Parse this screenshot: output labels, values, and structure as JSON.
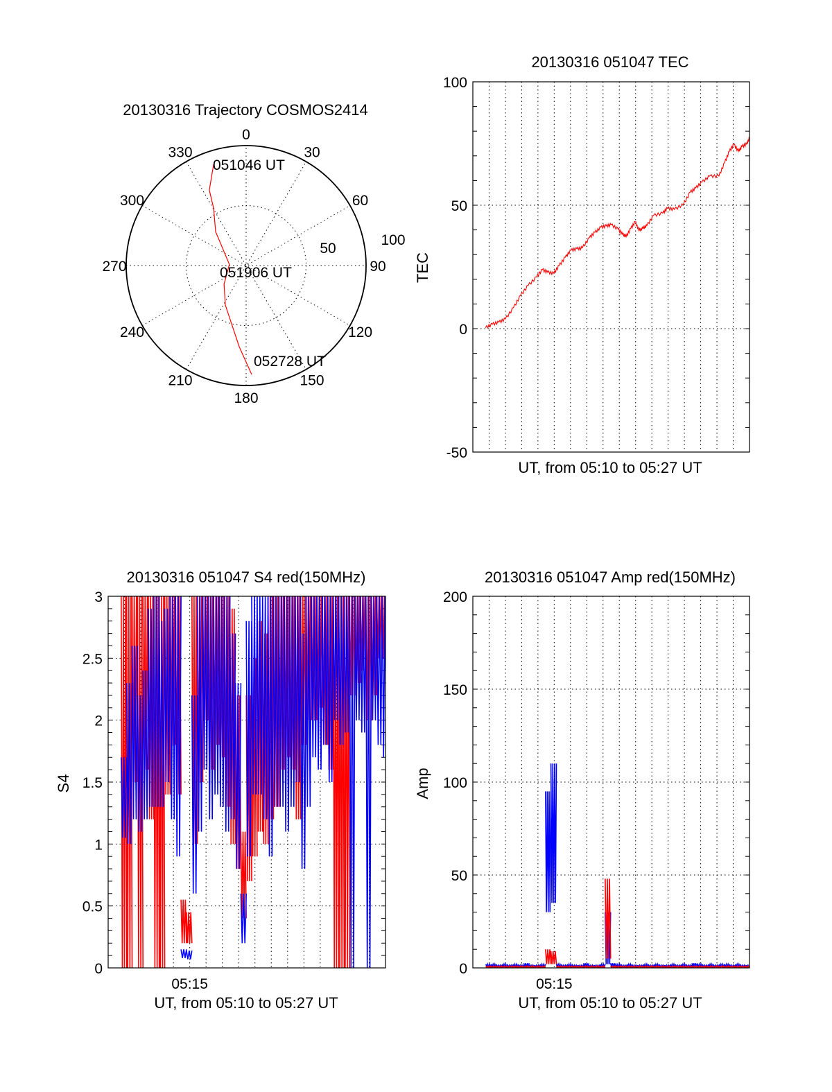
{
  "chart_data": [
    {
      "id": "polar",
      "type": "polar-trajectory",
      "title": "20130316 Trajectory COSMOS2414",
      "azimuth_labels": [
        "0",
        "30",
        "60",
        "90",
        "120",
        "150",
        "180",
        "210",
        "240",
        "270",
        "300",
        "330"
      ],
      "radial_labels": [
        "50",
        "100"
      ],
      "rlim": [
        0,
        100
      ],
      "color": "#ff0000",
      "trajectory": [
        {
          "az": 342.2,
          "r": 88.6
        },
        {
          "az": 334.0,
          "r": 70.0
        },
        {
          "az": 330.5,
          "r": 55.0
        },
        {
          "az": 318.0,
          "r": 38.0
        },
        {
          "az": 274.0,
          "r": 14.0
        },
        {
          "az": 230.0,
          "r": 24.0
        },
        {
          "az": 207.8,
          "r": 37.2
        },
        {
          "az": 192.0,
          "r": 53.0
        },
        {
          "az": 184.9,
          "r": 67.9
        },
        {
          "az": 177.1,
          "r": 90.9
        }
      ],
      "annotations": {
        "start": "051046 UT",
        "middle": "051906 UT",
        "end": "052728 UT"
      }
    },
    {
      "id": "tec",
      "type": "line",
      "title": "20130316 051047 TEC",
      "xlabel": "UT, from 05:10 to 05:27 UT",
      "ylabel": "TEC",
      "xlim_minutes_after_0510": [
        0,
        17
      ],
      "ylim": [
        -50,
        100
      ],
      "yticks": [
        "100",
        "50",
        "0",
        "-50"
      ],
      "ytick_values": [
        100,
        50,
        0,
        -50
      ],
      "xtick_labels": [],
      "series": [
        {
          "name": "TEC",
          "color": "#ff0000",
          "t": [
            0.78,
            1.2,
            1.6,
            2.0,
            2.5,
            2.93,
            3.4,
            3.92,
            4.27,
            4.6,
            4.98,
            5.3,
            5.68,
            6.03,
            6.4,
            6.74,
            7.16,
            7.5,
            7.87,
            8.2,
            8.5,
            8.93,
            9.2,
            9.42,
            9.7,
            9.98,
            10.2,
            10.45,
            10.7,
            11.1,
            11.67,
            11.96,
            12.38,
            12.94,
            13.36,
            13.7,
            14.07,
            14.56,
            15.12,
            15.48,
            15.76,
            16.04,
            16.32,
            16.54,
            16.82,
            17.0
          ],
          "values": [
            0.4,
            1.8,
            2.6,
            3.9,
            8.5,
            13.4,
            17.5,
            20.9,
            23.9,
            22.8,
            22.4,
            25.5,
            28.9,
            31.8,
            32.3,
            32.8,
            36.8,
            39.0,
            41.1,
            41.6,
            42.1,
            40.3,
            38.2,
            37.3,
            40.5,
            43.3,
            39.8,
            40.6,
            41.8,
            45.8,
            46.8,
            48.8,
            48.3,
            50.3,
            55.3,
            57.0,
            59.3,
            61.8,
            61.8,
            67.3,
            71.8,
            74.7,
            71.8,
            73.8,
            74.7,
            77.2
          ]
        }
      ]
    },
    {
      "id": "s4",
      "type": "band",
      "title": "20130316 051047 S4 red(150MHz)",
      "xlabel": "UT, from 05:10 to 05:27 UT",
      "ylabel": "S4",
      "xlim_minutes_after_0510": [
        0,
        17
      ],
      "ylim": [
        0,
        3
      ],
      "yticks": [
        "3",
        "2.5",
        "2",
        "1.5",
        "1",
        "0.5",
        "0"
      ],
      "ytick_values": [
        3,
        2.5,
        2,
        1.5,
        1,
        0.5,
        0
      ],
      "xtick_labels": [
        {
          "label": "05:15",
          "t": 5
        }
      ],
      "bin_start": 0.8,
      "bin_minutes": 0.3333,
      "series": [
        {
          "name": "red",
          "color": "#ff0000",
          "min": [
            0,
            0,
            1.5,
            0,
            1.6,
            1.2,
            0,
            0,
            1.4,
            1.8,
            1.4,
            0.2,
            0.2,
            1.0,
            1.5,
            2.0,
            1.6,
            1.8,
            1.7,
            1.3,
            1.0,
            0.8,
            0.4,
            0.7,
            0.9,
            1.1,
            1.0,
            1.2,
            1.3,
            1.6,
            1.7,
            1.6,
            1.2,
            1.8,
            2.0,
            2.0,
            2.1,
            1.8,
            1.6,
            0,
            0,
            0,
            2.2,
            2.3,
            2.4,
            2.0,
            2.2,
            2.5,
            2.5
          ],
          "max": [
            3,
            3,
            3,
            3,
            3,
            3,
            3,
            3,
            3,
            3,
            3,
            0.55,
            0.45,
            3,
            3,
            3,
            3,
            3,
            3,
            3,
            2.9,
            2.2,
            1.1,
            2.2,
            2.5,
            2.8,
            2.7,
            3,
            3,
            3,
            3,
            3,
            3,
            3,
            3,
            3,
            3,
            3,
            3,
            3,
            3,
            3,
            3,
            3,
            3,
            3,
            3,
            3,
            3
          ]
        },
        {
          "name": "blue",
          "color": "#0000ff",
          "min": [
            1.05,
            1.0,
            1.2,
            1.1,
            1.2,
            1.3,
            1.3,
            1.3,
            1.5,
            1.2,
            0.9,
            0.08,
            0.07,
            0.6,
            1.1,
            1.6,
            1.2,
            1.4,
            1.3,
            1.1,
            1.2,
            0.8,
            0.2,
            0.9,
            1.4,
            1.4,
            1.2,
            0.9,
            1.3,
            1.3,
            1.1,
            1.3,
            1.5,
            0.8,
            1.3,
            1.7,
            1.6,
            1.8,
            1.5,
            2.0,
            1.8,
            1.9,
            0,
            2.0,
            1.9,
            0,
            2.0,
            1.8,
            1.7
          ],
          "max": [
            1.7,
            2.3,
            2.6,
            2.2,
            2.4,
            2.9,
            3,
            2.8,
            2.9,
            3,
            3,
            0.15,
            0.14,
            2.2,
            3,
            3,
            3,
            3,
            3,
            3,
            2.7,
            2.3,
            0.6,
            2.8,
            3,
            3,
            3,
            3,
            3,
            3,
            3,
            3,
            3,
            2.7,
            3,
            3,
            3,
            3,
            3,
            3,
            3,
            3,
            3,
            3,
            3,
            3,
            3,
            3,
            3
          ]
        }
      ]
    },
    {
      "id": "amp",
      "type": "band",
      "title": "20130316 051047 Amp red(150MHz)",
      "xlabel": "UT, from 05:10 to 05:27 UT",
      "ylabel": "Amp",
      "xlim_minutes_after_0510": [
        0,
        17
      ],
      "ylim": [
        0,
        200
      ],
      "yticks": [
        "200",
        "150",
        "100",
        "50",
        "0"
      ],
      "ytick_values": [
        200,
        150,
        100,
        50,
        0
      ],
      "xtick_labels": [
        {
          "label": "05:15",
          "t": 5
        }
      ],
      "bin_start": 0.8,
      "bin_minutes": 0.3333,
      "series": [
        {
          "name": "blue",
          "color": "#0000ff",
          "min": [
            0.5,
            0.5,
            0.5,
            0.5,
            0.5,
            0.5,
            0.5,
            0.5,
            0.5,
            0.5,
            0.5,
            30,
            35,
            0.5,
            0.5,
            0.5,
            0.5,
            0.5,
            0.5,
            0.5,
            0.5,
            0.5,
            2,
            0.5,
            0.5,
            0.5,
            0.5,
            0.5,
            0.5,
            0.5,
            0.5,
            0.5,
            0.5,
            0.5,
            0.5,
            0.5,
            0.5,
            0.5,
            0.5,
            0.5,
            0.5,
            0.5,
            0.5,
            0.5,
            0.5,
            0.5,
            0.5,
            0.5,
            0.5
          ],
          "max": [
            2,
            2,
            1.5,
            2,
            1.5,
            2,
            1.5,
            2.5,
            1.5,
            1.5,
            2,
            95,
            110,
            2,
            1.5,
            2,
            1.5,
            1.5,
            2.5,
            1.5,
            1.5,
            2,
            30,
            2.5,
            2,
            1.5,
            2,
            1.5,
            1.5,
            2,
            1.5,
            2,
            1.5,
            1.5,
            2,
            1.5,
            2,
            1.5,
            2.5,
            2,
            1.5,
            2,
            1.5,
            2,
            2,
            1.5,
            2,
            1.5,
            1.5
          ]
        },
        {
          "name": "red",
          "color": "#ff0000",
          "min": [
            0,
            0,
            0,
            0,
            0,
            0,
            0,
            0,
            0,
            0,
            0,
            2,
            2,
            0,
            0,
            0,
            0,
            0,
            0,
            0,
            0,
            0,
            5,
            0,
            0,
            0,
            0,
            0,
            0,
            0,
            0,
            0,
            0,
            0,
            0,
            0,
            0,
            0,
            0,
            0,
            0,
            0,
            0,
            0,
            0,
            0,
            0,
            0,
            0
          ],
          "max": [
            1,
            1,
            1,
            1,
            1,
            1,
            1,
            1,
            1,
            1,
            1,
            10,
            9,
            1,
            1,
            1,
            1,
            1,
            1,
            1,
            1,
            1,
            48,
            1,
            1,
            1,
            1,
            1,
            1,
            1,
            1,
            1,
            1,
            1,
            1,
            1,
            1,
            1,
            1,
            1,
            1,
            1,
            1,
            1,
            1,
            1,
            1,
            1,
            1
          ]
        }
      ]
    }
  ]
}
